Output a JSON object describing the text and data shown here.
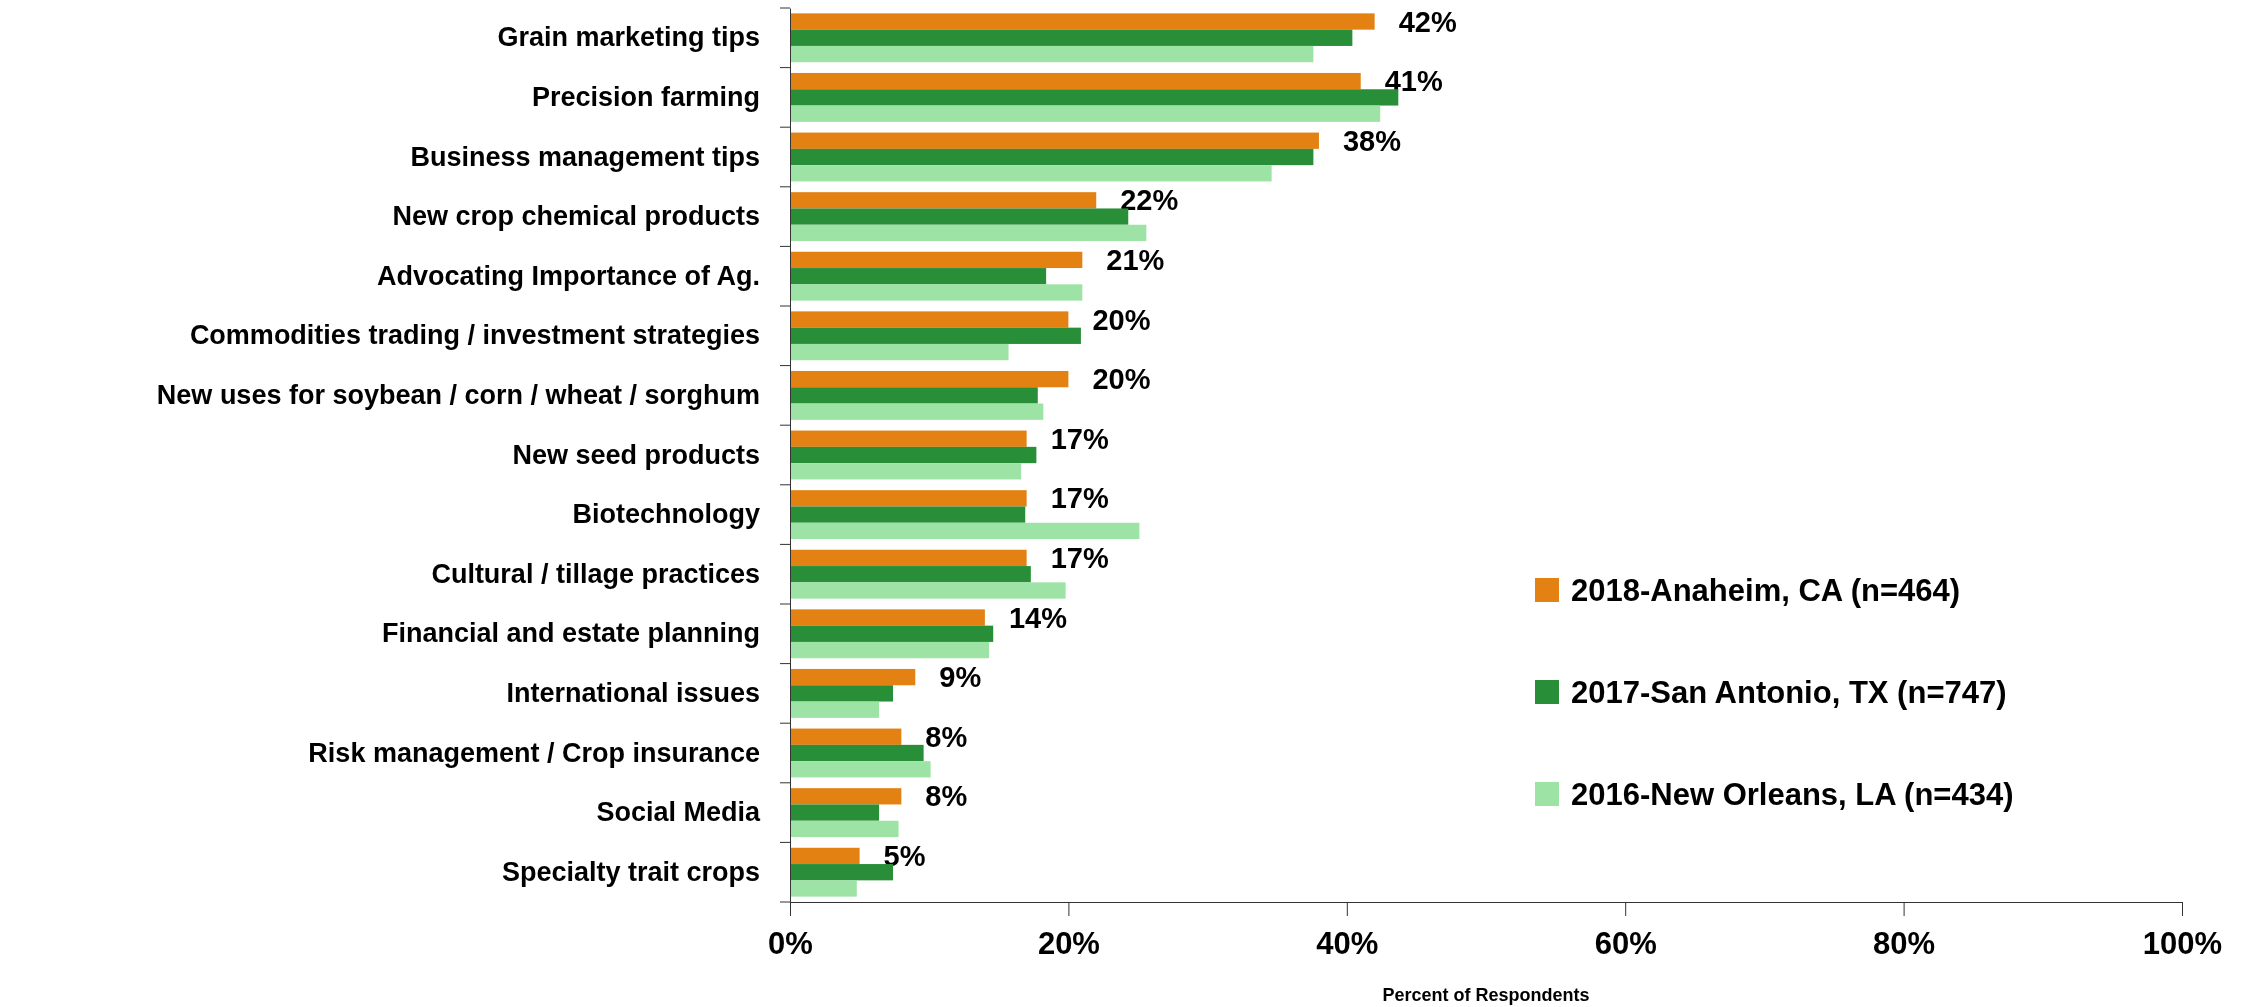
{
  "chart_data": {
    "type": "bar",
    "orientation": "horizontal",
    "xlabel": "Percent of Respondents",
    "categories": [
      "Grain marketing tips",
      "Precision farming",
      "Business management tips",
      "New crop chemical products",
      "Advocating Importance of Ag.",
      "Commodities trading / investment strategies",
      "New uses for soybean / corn / wheat / sorghum",
      "New seed products",
      "Biotechnology",
      "Cultural / tillage practices",
      "Financial and estate planning",
      "International issues",
      "Risk management / Crop insurance",
      "Social Media",
      "Specialty trait crops"
    ],
    "series": [
      {
        "name": "2018-Anaheim, CA (n=464)",
        "color": "#e38213",
        "values": [
          42,
          41,
          38,
          22,
          21,
          20,
          20,
          17,
          17,
          17,
          14,
          9,
          8,
          8,
          5
        ],
        "value_labels": [
          "42%",
          "41%",
          "38%",
          "22%",
          "21%",
          "20%",
          "20%",
          "17%",
          "17%",
          "17%",
          "14%",
          "9%",
          "8%",
          "8%",
          "5%"
        ]
      },
      {
        "name": "2017-San Antonio, TX (n=747)",
        "color": "#288f38",
        "values": [
          40.4,
          43.7,
          37.6,
          24.3,
          18.4,
          20.9,
          17.8,
          17.7,
          16.9,
          17.3,
          14.6,
          7.4,
          9.6,
          6.4,
          7.4
        ]
      },
      {
        "name": "2016-New Orleans, LA (n=434)",
        "color": "#9ce3a5",
        "values": [
          37.6,
          42.4,
          34.6,
          25.6,
          21.0,
          15.7,
          18.2,
          16.6,
          25.1,
          19.8,
          14.3,
          6.4,
          10.1,
          7.8,
          4.8
        ]
      }
    ],
    "xlim": [
      0,
      100
    ],
    "xticks": [
      {
        "value": 0,
        "label": "0%"
      },
      {
        "value": 20,
        "label": "20%"
      },
      {
        "value": 40,
        "label": "40%"
      },
      {
        "value": 60,
        "label": "60%"
      },
      {
        "value": 80,
        "label": "80%"
      },
      {
        "value": 100,
        "label": "100%"
      }
    ],
    "legend": "right",
    "grid": false
  }
}
